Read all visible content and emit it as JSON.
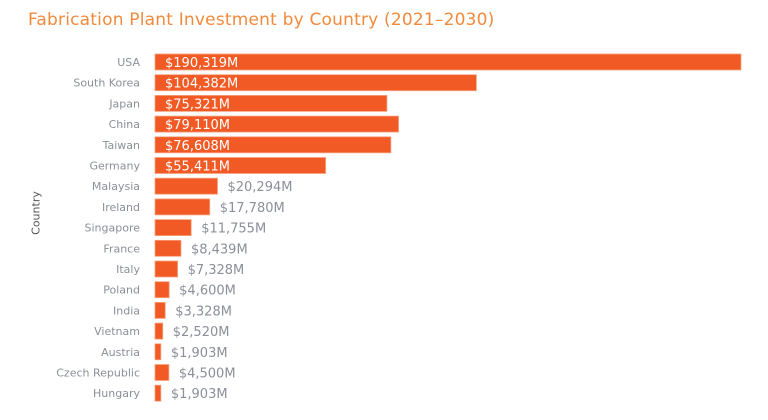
{
  "chart_data": {
    "type": "bar",
    "orientation": "horizontal",
    "title": "Fabrication Plant Investment by Country (2021–2030)",
    "ylabel": "Country",
    "xlabel": "",
    "categories": [
      "USA",
      "South Korea",
      "Japan",
      "China",
      "Taiwan",
      "Germany",
      "Malaysia",
      "Ireland",
      "Singapore",
      "France",
      "Italy",
      "Poland",
      "India",
      "Vietnam",
      "Austria",
      "Czech Republic",
      "Hungary"
    ],
    "values": [
      190319,
      104382,
      75321,
      79110,
      76608,
      55411,
      20294,
      17780,
      11755,
      8439,
      7328,
      4600,
      3328,
      2520,
      1903,
      4500,
      1903
    ],
    "labels": [
      "$190,319M",
      "$104,382M",
      "$75,321M",
      "$79,110M",
      "$76,608M",
      "$55,411M",
      "$20,294M",
      "$17,780M",
      "$11,755M",
      "$8,439M",
      "$7,328M",
      "$4,600M",
      "$3,328M",
      "$2,520M",
      "$1,903M",
      "$4,500M",
      "$1,903M"
    ],
    "unit": "$M",
    "grid": false,
    "legend": "none",
    "colors": {
      "bar": "#f15a24",
      "bar_border": "#f7a27f",
      "title": "#f28a3c",
      "label": "#8a8f99"
    }
  }
}
